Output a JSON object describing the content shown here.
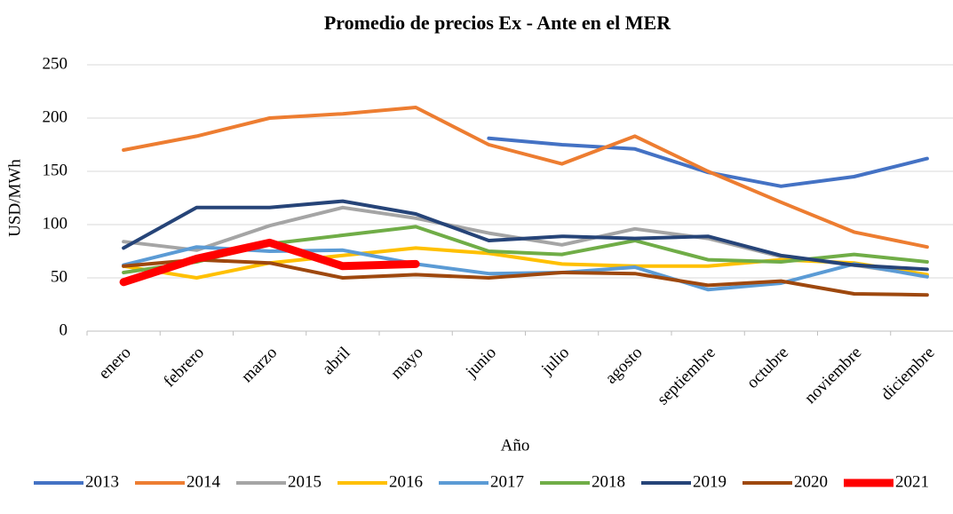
{
  "chart_data": {
    "type": "line",
    "title": "Promedio de precios Ex - Ante en el MER",
    "x_label": "Año",
    "y_label": "USD/MWh",
    "categories": [
      "enero",
      "febrero",
      "marzo",
      "abril",
      "mayo",
      "junio",
      "julio",
      "agosto",
      "septiembre",
      "octubre",
      "noviembre",
      "diciembre"
    ],
    "ylim": [
      0,
      250
    ],
    "yticks": [
      0,
      50,
      100,
      150,
      200,
      250
    ],
    "grid": true,
    "legend": "bottom",
    "series": [
      {
        "name": "2013",
        "color": "#4472c4",
        "values": [
          null,
          null,
          null,
          null,
          null,
          181,
          175,
          171,
          149,
          136,
          145,
          162
        ]
      },
      {
        "name": "2014",
        "color": "#ed7d31",
        "values": [
          170,
          183,
          200,
          204,
          210,
          175,
          157,
          183,
          150,
          121,
          93,
          79
        ]
      },
      {
        "name": "2015",
        "color": "#a5a5a5",
        "values": [
          84,
          76,
          99,
          116,
          106,
          92,
          81,
          96,
          87,
          70,
          62,
          52
        ]
      },
      {
        "name": "2016",
        "color": "#ffc000",
        "values": [
          61,
          50,
          64,
          71,
          78,
          73,
          63,
          61,
          61,
          67,
          64,
          53
        ]
      },
      {
        "name": "2017",
        "color": "#5b9bd5",
        "values": [
          62,
          79,
          75,
          76,
          63,
          54,
          55,
          60,
          39,
          45,
          63,
          51
        ]
      },
      {
        "name": "2018",
        "color": "#70ad47",
        "values": [
          55,
          65,
          82,
          90,
          98,
          75,
          72,
          85,
          67,
          65,
          72,
          65
        ]
      },
      {
        "name": "2019",
        "color": "#264478",
        "values": [
          78,
          116,
          116,
          122,
          110,
          85,
          89,
          87,
          89,
          71,
          62,
          58
        ]
      },
      {
        "name": "2020",
        "color": "#9e480e",
        "values": [
          61,
          67,
          64,
          50,
          53,
          50,
          55,
          54,
          43,
          47,
          35,
          34
        ]
      },
      {
        "name": "2021",
        "color": "#ff0000",
        "values": [
          46,
          68,
          83,
          61,
          63,
          null,
          null,
          null,
          null,
          null,
          null,
          null
        ]
      }
    ]
  }
}
